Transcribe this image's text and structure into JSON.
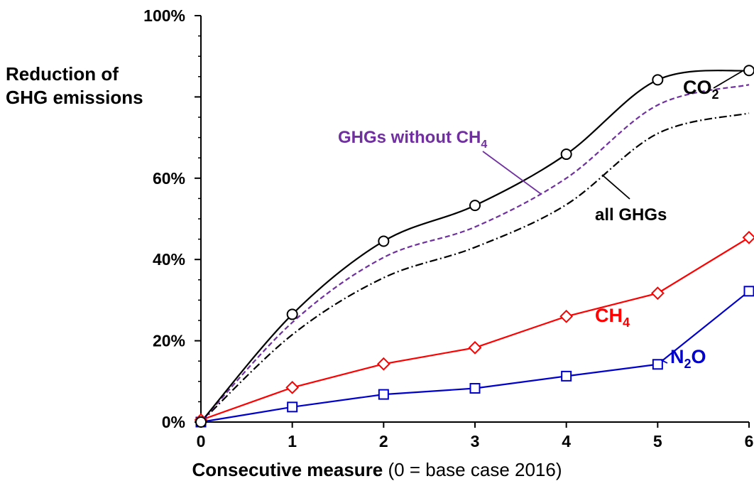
{
  "chart_data": {
    "type": "line",
    "ylabel_line1": "Reduction of",
    "ylabel_line2": "GHG emissions",
    "xlabel_bold": "Consecutive measure",
    "xlabel_rest": " (0 = base case 2016)",
    "x": [
      0,
      1,
      2,
      3,
      4,
      5,
      6
    ],
    "xlim": [
      0,
      6
    ],
    "ylim": [
      0,
      100
    ],
    "x_ticks": [
      "0",
      "1",
      "2",
      "3",
      "4",
      "5",
      "6"
    ],
    "y_ticks": [
      {
        "value": 0,
        "label": "0%"
      },
      {
        "value": 20,
        "label": "20%"
      },
      {
        "value": 40,
        "label": "40%"
      },
      {
        "value": 60,
        "label": "60%"
      },
      {
        "value": 80,
        "label": ""
      },
      {
        "value": 100,
        "label": "100%"
      }
    ],
    "grid": false,
    "series": [
      {
        "name": "CO2",
        "label_main": "CO",
        "label_sub": "2",
        "values": [
          0,
          26.5,
          44.5,
          53.3,
          65.9,
          84.2,
          86.5
        ],
        "color": "#000000",
        "marker": "circle",
        "style": "solid",
        "smooth": true
      },
      {
        "name": "GHGs without CH4",
        "label_main": "GHGs without CH",
        "label_sub": "4",
        "values": [
          0,
          24.5,
          40.5,
          48,
          60,
          78,
          83
        ],
        "color": "#7030a0",
        "marker": "none",
        "style": "dashed",
        "smooth": true
      },
      {
        "name": "all GHGs",
        "label_main": "all GHGs",
        "label_sub": "",
        "values": [
          0,
          21.5,
          35.5,
          43,
          53.5,
          71,
          76
        ],
        "color": "#000000",
        "marker": "none",
        "style": "dashdot",
        "smooth": true
      },
      {
        "name": "CH4",
        "label_main": "CH",
        "label_sub": "4",
        "values": [
          0.5,
          8.5,
          14.3,
          18.3,
          26,
          31.7,
          45.4
        ],
        "color": "#ff0000",
        "marker": "diamond",
        "style": "solid",
        "smooth": false
      },
      {
        "name": "N2O",
        "label_main": "N",
        "label_sub": "2",
        "label_tail": "O",
        "values": [
          0,
          3.7,
          6.8,
          8.3,
          11.3,
          14.2,
          32.2
        ],
        "color": "#0000cc",
        "marker": "square",
        "style": "solid",
        "smooth": false
      }
    ]
  }
}
